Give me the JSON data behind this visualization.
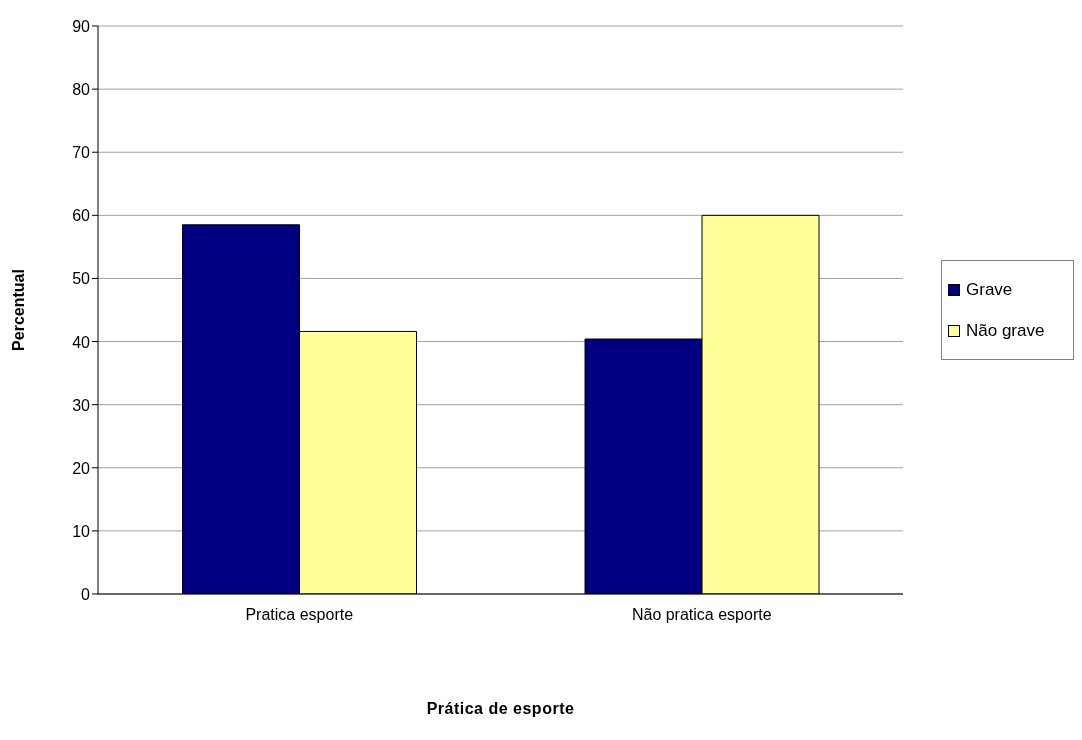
{
  "chart_data": {
    "type": "bar",
    "xlabel": "Prática de esporte",
    "ylabel": "Percentual",
    "categories": [
      "Pratica esporte",
      "Não pratica esporte"
    ],
    "series": [
      {
        "name": "Grave",
        "color": "#000080",
        "values": [
          58.5,
          40.4
        ]
      },
      {
        "name": "Não grave",
        "color": "#ffff99",
        "values": [
          41.6,
          60
        ]
      }
    ],
    "ylim": [
      0,
      90
    ],
    "yticks": [
      0,
      10,
      20,
      30,
      40,
      50,
      60,
      70,
      80,
      90
    ],
    "grid": "y",
    "legend": "right"
  }
}
